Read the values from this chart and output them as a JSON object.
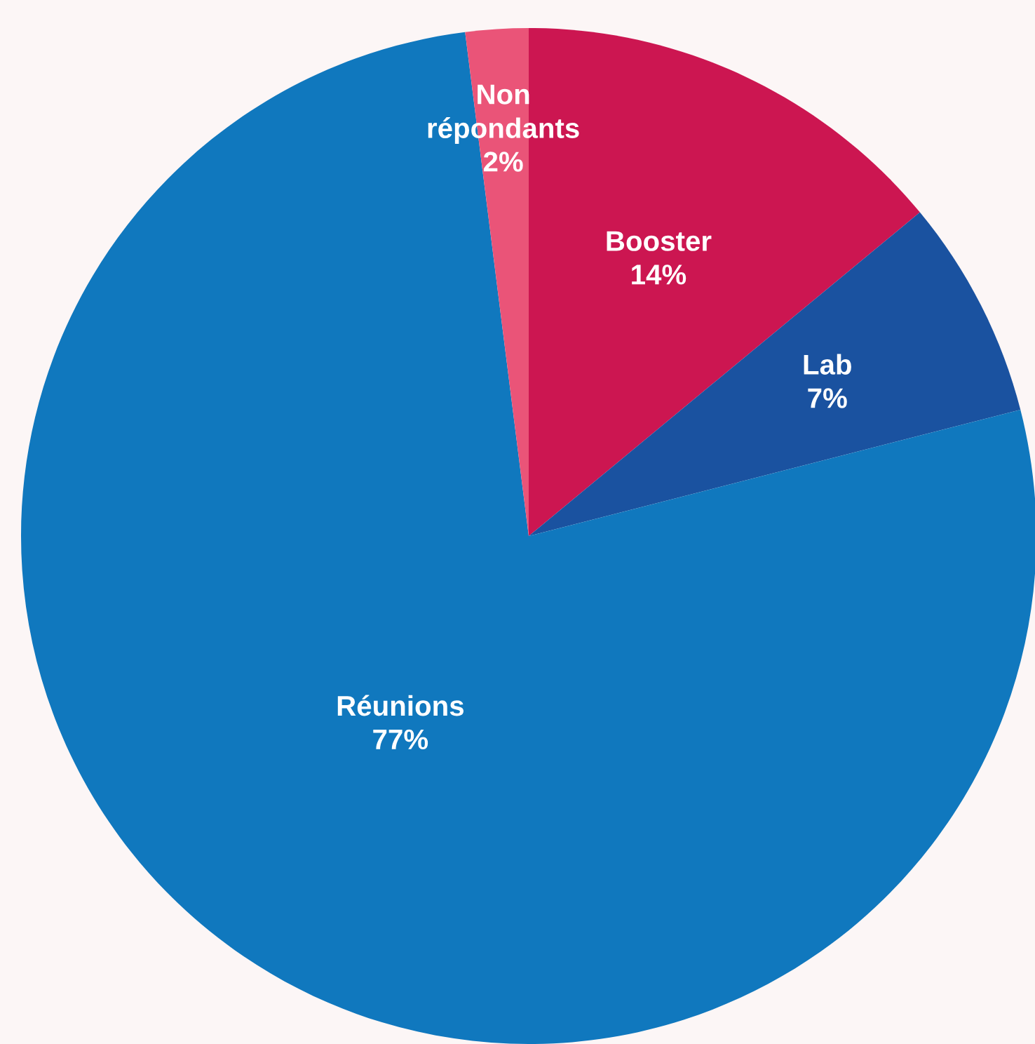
{
  "chart_data": {
    "type": "pie",
    "categories": [
      "Booster",
      "Lab",
      "Réunions",
      "Non répondants"
    ],
    "values": [
      14,
      7,
      77,
      2
    ],
    "colors": [
      "#cc1651",
      "#1a52a0",
      "#1078be",
      "#ea5478"
    ],
    "value_labels": [
      "14%",
      "7%",
      "77%",
      "2%"
    ]
  }
}
